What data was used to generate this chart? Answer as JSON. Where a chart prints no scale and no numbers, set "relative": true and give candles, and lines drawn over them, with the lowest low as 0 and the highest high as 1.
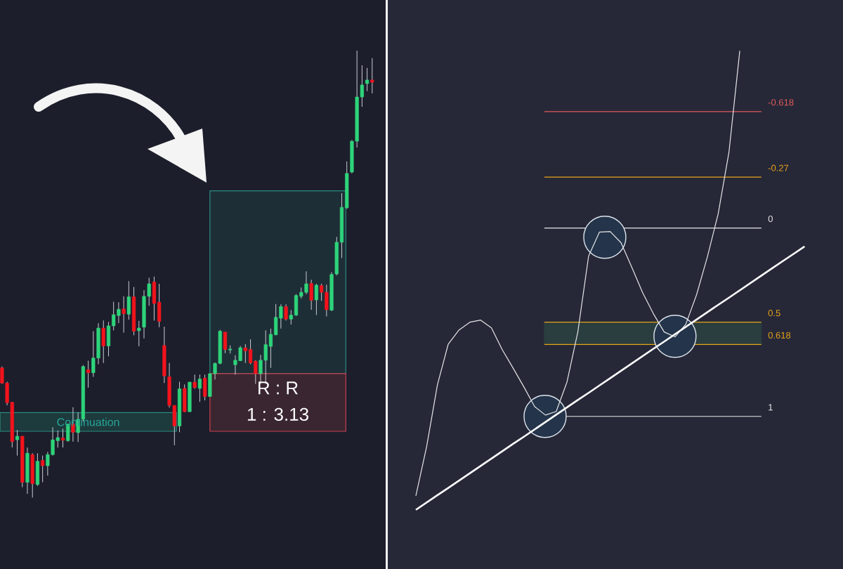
{
  "chart_data": [
    {
      "type": "candlestick",
      "relative": true,
      "tick_labels": false,
      "categories": [
        null,
        null,
        null,
        null,
        null,
        null,
        null,
        null,
        null,
        null,
        null,
        null,
        null,
        null,
        null,
        null,
        null,
        null,
        null,
        null,
        null,
        null,
        null,
        null,
        null,
        null,
        null,
        null,
        null,
        null,
        null,
        null,
        null,
        null,
        null,
        null,
        null,
        null,
        null,
        null,
        null,
        null,
        null,
        null,
        null,
        null,
        null,
        null,
        null,
        null,
        null,
        null,
        null,
        null,
        null,
        null,
        null,
        null,
        null,
        null,
        null,
        null,
        null,
        null,
        null,
        null,
        null,
        null,
        null,
        null,
        null,
        null,
        null,
        null
      ],
      "ohlc": [
        [
          0.29,
          0.293,
          0.254,
          0.256
        ],
        [
          0.256,
          0.259,
          0.206,
          0.212
        ],
        [
          0.213,
          0.214,
          0.112,
          0.125
        ],
        [
          0.129,
          0.151,
          0.094,
          0.137
        ],
        [
          0.137,
          0.138,
          0.023,
          0.034
        ],
        [
          0.034,
          0.112,
          0.008,
          0.099
        ],
        [
          0.096,
          0.099,
          0,
          0.031
        ],
        [
          0.029,
          0.099,
          0.026,
          0.081
        ],
        [
          0.083,
          0.094,
          0.034,
          0.071
        ],
        [
          0.071,
          0.102,
          0.049,
          0.096
        ],
        [
          0.096,
          0.157,
          0.094,
          0.129
        ],
        [
          0.127,
          0.15,
          0.112,
          0.134
        ],
        [
          0.133,
          0.154,
          0.112,
          0.128
        ],
        [
          0.127,
          0.165,
          0.125,
          0.164
        ],
        [
          0.164,
          0.202,
          0.125,
          0.146
        ],
        [
          0.145,
          0.19,
          0.124,
          0.175
        ],
        [
          0.175,
          0.296,
          0.17,
          0.293
        ],
        [
          0.286,
          0.306,
          0.246,
          0.279
        ],
        [
          0.279,
          0.372,
          0.27,
          0.312
        ],
        [
          0.312,
          0.39,
          0.298,
          0.379
        ],
        [
          0.379,
          0.396,
          0.301,
          0.339
        ],
        [
          0.339,
          0.393,
          0.316,
          0.384
        ],
        [
          0.384,
          0.438,
          0.374,
          0.409
        ],
        [
          0.407,
          0.437,
          0.39,
          0.421
        ],
        [
          0.422,
          0.45,
          0.369,
          0.411
        ],
        [
          0.41,
          0.484,
          0.398,
          0.449
        ],
        [
          0.449,
          0.471,
          0.363,
          0.372
        ],
        [
          0.373,
          0.395,
          0.338,
          0.379
        ],
        [
          0.381,
          0.464,
          0.356,
          0.45
        ],
        [
          0.45,
          0.492,
          0.429,
          0.478
        ],
        [
          0.482,
          0.494,
          0.396,
          0.434
        ],
        [
          0.437,
          0.478,
          0.381,
          0.394
        ],
        [
          0.34,
          0.382,
          0.256,
          0.272
        ],
        [
          0.27,
          0.301,
          0.201,
          0.206
        ],
        [
          0.206,
          0.206,
          0.117,
          0.16
        ],
        [
          0.16,
          0.259,
          0.146,
          0.243
        ],
        [
          0.244,
          0.253,
          0.191,
          0.192
        ],
        [
          0.192,
          0.259,
          0.191,
          0.258
        ],
        [
          0.258,
          0.275,
          0.243,
          0.246
        ],
        [
          0.244,
          0.275,
          0.214,
          0.265
        ],
        [
          0.267,
          0.275,
          0.217,
          0.226
        ],
        [
          0.226,
          0.277,
          0.225,
          0.277
        ],
        [
          0.277,
          0.302,
          0.264,
          0.3
        ],
        [
          0.3,
          0.375,
          0.298,
          0.372
        ],
        [
          0.37,
          0.37,
          0.323,
          0.331
        ],
        [
          0.33,
          0.34,
          0.322,
          0.332
        ],
        [
          0.297,
          0.318,
          0.275,
          0.307
        ],
        [
          0.306,
          0.339,
          0.305,
          0.335
        ],
        [
          0.335,
          0.343,
          0.301,
          0.328
        ],
        [
          0.331,
          0.354,
          0.298,
          0.301
        ],
        [
          0.305,
          0.307,
          0.254,
          0.277
        ],
        [
          0.277,
          0.319,
          0.254,
          0.307
        ],
        [
          0.307,
          0.374,
          0.254,
          0.342
        ],
        [
          0.338,
          0.378,
          0.29,
          0.365
        ],
        [
          0.364,
          0.433,
          0.363,
          0.403
        ],
        [
          0.401,
          0.432,
          0.378,
          0.427
        ],
        [
          0.427,
          0.432,
          0.396,
          0.399
        ],
        [
          0.399,
          0.419,
          0.387,
          0.408
        ],
        [
          0.408,
          0.455,
          0.406,
          0.452
        ],
        [
          0.45,
          0.47,
          0.445,
          0.459
        ],
        [
          0.459,
          0.506,
          0.455,
          0.478
        ],
        [
          0.479,
          0.487,
          0.42,
          0.441
        ],
        [
          0.442,
          0.478,
          0.408,
          0.475
        ],
        [
          0.474,
          0.478,
          0.44,
          0.459
        ],
        [
          0.459,
          0.476,
          0.405,
          0.42
        ],
        [
          0.419,
          0.504,
          0.417,
          0.499
        ],
        [
          0.5,
          0.583,
          0.497,
          0.571
        ],
        [
          0.571,
          0.681,
          0.536,
          0.649
        ],
        [
          0.648,
          0.752,
          0.646,
          0.725
        ],
        [
          0.728,
          0.8,
          0.725,
          0.797
        ],
        [
          0.797,
          1,
          0.783,
          0.896
        ],
        [
          0.896,
          0.967,
          0.874,
          0.923
        ],
        [
          0.926,
          0.961,
          0.909,
          0.934
        ],
        [
          0.934,
          0.983,
          0.904,
          0.929
        ]
      ],
      "bands": [
        {
          "axis": "y",
          "from": 0.148,
          "to": 0.19,
          "label": "Continuation",
          "color": "#1D3A3C"
        },
        {
          "axis": "y",
          "from": 0.277,
          "to": 0.686,
          "color": "#1E2E36"
        },
        {
          "axis": "y",
          "from": 0.148,
          "to": 0.277,
          "color": "#3A2630"
        }
      ],
      "annotations": [
        "R : R",
        "1 : 3.13"
      ]
    },
    {
      "type": "line",
      "tick_labels": false,
      "categories": [
        null,
        null,
        null,
        null,
        null,
        null,
        null,
        null,
        null,
        null,
        null,
        null,
        null,
        null,
        null,
        null,
        null,
        null,
        null,
        null,
        null,
        null,
        null,
        null,
        null,
        null,
        null,
        null,
        null,
        null,
        null,
        null,
        null,
        null,
        null,
        null,
        null
      ],
      "ylim": [
        1.81,
        -1.21
      ],
      "series": [
        {
          "color": "#E6E6E6",
          "values": [
            1.422,
            1.16,
            0.832,
            0.616,
            0.541,
            0.5,
            0.489,
            0.53,
            0.646,
            0.743,
            0.843,
            0.948,
            0.993,
            0.974,
            0.817,
            0.552,
            0.149,
            0.022,
            0.019,
            0.078,
            0.209,
            0.343,
            0.455,
            0.552,
            0.578,
            0.511,
            0.354,
            0.153,
            -0.075,
            -0.403,
            -0.94,
            null,
            null,
            null,
            null,
            null,
            null
          ]
        },
        {
          "color": "#FFFFFF",
          "values": [
            1.496,
            1.457,
            1.418,
            1.38,
            1.341,
            1.302,
            1.263,
            1.224,
            1.185,
            1.146,
            1.108,
            1.069,
            1.03,
            0.991,
            0.952,
            0.913,
            0.875,
            0.836,
            0.797,
            0.758,
            0.719,
            0.68,
            0.641,
            0.603,
            0.564,
            0.525,
            0.486,
            0.447,
            0.408,
            0.37,
            0.331,
            0.292,
            0.253,
            0.214,
            0.175,
            0.137,
            0.098
          ]
        }
      ],
      "bands": [
        {
          "axis": "y",
          "from": 0.5,
          "to": 0.618,
          "color": "#2A3D3F"
        }
      ],
      "ref_lines": [
        {
          "axis": "y",
          "value": -0.618,
          "label": "-0.618",
          "color": "#E05A5A"
        },
        {
          "axis": "y",
          "value": -0.27,
          "label": "-0.27",
          "color": "#E8A317"
        },
        {
          "axis": "y",
          "value": 0,
          "label": "0",
          "color": "#E8E8E8"
        },
        {
          "axis": "y",
          "value": 0.5,
          "label": "0.5",
          "color": "#E8A317"
        },
        {
          "axis": "y",
          "value": 0.618,
          "label": "0.618",
          "color": "#E8A317"
        },
        {
          "axis": "y",
          "value": 1,
          "label": "1",
          "color": "#E8E8E8"
        }
      ]
    }
  ]
}
